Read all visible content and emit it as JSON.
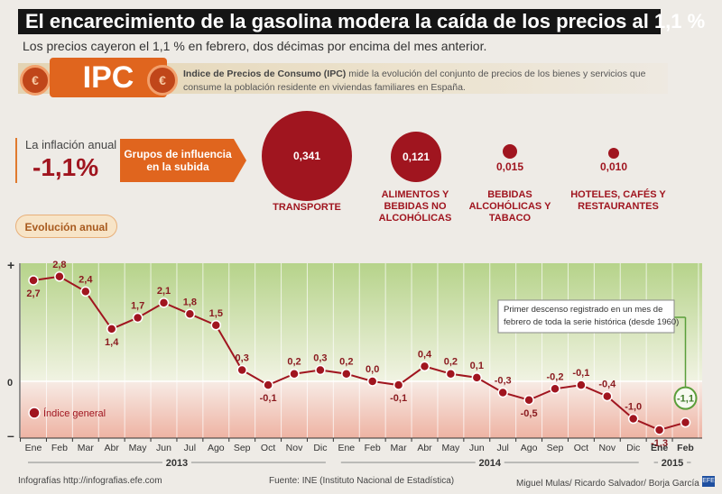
{
  "header": {
    "title": "El encarecimiento de la gasolina modera la caída de los precios al 1,1 %",
    "subtitle": "Los precios cayeron el 1,1 % en febrero, dos décimas por encima del mes anterior."
  },
  "ipc": {
    "label": "IPC",
    "coin_symbol": "€",
    "desc_bold": "Indice de Precios de Consumo (IPC)",
    "desc_rest": " mide la evolución del conjunto de precios de los bienes y servicios que consume la población residente en viviendas familiares en España."
  },
  "inflation": {
    "label": "La inflación anual",
    "value": "-1,1%"
  },
  "groups": {
    "title": "Grupos de influencia en la subida",
    "items": [
      {
        "value": "0,341",
        "label": "TRANSPORTE"
      },
      {
        "value": "0,121",
        "label": "ALIMENTOS Y BEBIDAS NO ALCOHÓLICAS"
      },
      {
        "value": "0,015",
        "label": "BEBIDAS ALCOHÓLICAS Y TABACO"
      },
      {
        "value": "0,010",
        "label": "HOTELES, CAFÉS Y RESTAURANTES"
      }
    ]
  },
  "evolution_label": "Evolución anual",
  "chart_data": {
    "type": "line",
    "title": "Evolución anual",
    "series": [
      {
        "name": "Índice general",
        "values": [
          2.7,
          2.8,
          2.4,
          1.4,
          1.7,
          2.1,
          1.8,
          1.5,
          0.3,
          -0.1,
          0.2,
          0.3,
          0.2,
          0.0,
          -0.1,
          0.4,
          0.2,
          0.1,
          -0.3,
          -0.5,
          -0.2,
          -0.1,
          -0.4,
          -1.0,
          -1.3,
          -1.1
        ],
        "labels": [
          "2,7",
          "2,8",
          "2,4",
          "1,4",
          "1,7",
          "2,1",
          "1,8",
          "1,5",
          "0,3",
          "-0,1",
          "0,2",
          "0,3",
          "0,2",
          "0,0",
          "-0,1",
          "0,4",
          "0,2",
          "0,1",
          "-0,3",
          "-0,5",
          "-0,2",
          "-0,1",
          "-0,4",
          "-1,0",
          "-1,3",
          "-1,1"
        ]
      }
    ],
    "categories": [
      "Ene",
      "Feb",
      "Mar",
      "Abr",
      "May",
      "Jun",
      "Jul",
      "Ago",
      "Sep",
      "Oct",
      "Nov",
      "Dic",
      "Ene",
      "Feb",
      "Mar",
      "Abr",
      "May",
      "Jun",
      "Jul",
      "Ago",
      "Sep",
      "Oct",
      "Nov",
      "Dic",
      "Ene",
      "Feb"
    ],
    "years": [
      "2013",
      "2014",
      "2015"
    ],
    "ylim": [
      -1.0,
      2.9
    ],
    "y_axis_marks": [
      "+",
      "0",
      "–"
    ],
    "legend": "Índice general",
    "annotation": "Primer descenso registrado en un mes de febrero de toda la serie histórica (desde 1960)",
    "colors": {
      "line": "#a0151f",
      "positive_area": "#c9dfa5",
      "negative_area": "#f2cfc4",
      "last_point": "#5a9e3a"
    }
  },
  "footer": {
    "left": "Infografías http://infografias.efe.com",
    "center": "Fuente: INE (Instituto Nacional de Estadística)",
    "right": "Miguel Mulas/ Ricardo Salvador/ Borja García",
    "logo": "EFE"
  }
}
